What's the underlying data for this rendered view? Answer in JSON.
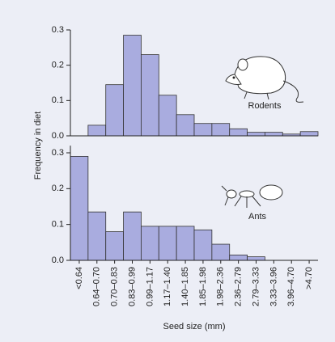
{
  "chart_data": [
    {
      "type": "bar",
      "annotation": "Rodents",
      "y_label": "Frequency in diet",
      "values": [
        0,
        0.03,
        0.145,
        0.285,
        0.23,
        0.115,
        0.06,
        0.035,
        0.035,
        0.02,
        0.01,
        0.01,
        0.005,
        0.012
      ],
      "color": "#a9acdf",
      "ylim": [
        0,
        0.3
      ],
      "yticks": [
        {
          "value": 0,
          "label": "0.0"
        },
        0.1,
        0.2,
        0.3
      ]
    },
    {
      "type": "bar",
      "annotation": "Ants",
      "x_label": "Seed size (mm)",
      "categories": [
        "<0.64",
        "0.64–0.70",
        "0.70–0.83",
        "0.83–0.99",
        "0.99–1.17",
        "1.17–1.40",
        "1.40–1.85",
        "1.85–1.98",
        "1.98–2.36",
        "2.36–2.79",
        "2.79–3.33",
        "3.33–3.96",
        "3.96–4.70",
        ">4.70"
      ],
      "values": [
        0.29,
        0.135,
        0.08,
        0.135,
        0.095,
        0.095,
        0.095,
        0.085,
        0.045,
        0.015,
        0.01,
        0,
        0,
        0
      ],
      "color": "#a9acdf",
      "ylim": [
        0,
        0.32
      ],
      "yticks": [
        {
          "value": 0,
          "label": "0.0"
        },
        0.1,
        0.2,
        0.3
      ]
    }
  ]
}
